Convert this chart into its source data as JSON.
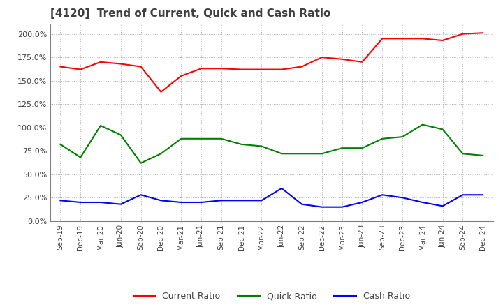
{
  "title": "[4120]  Trend of Current, Quick and Cash Ratio",
  "title_color": "#404040",
  "background_color": "#ffffff",
  "plot_background": "#ffffff",
  "grid_color": "#b0b0b0",
  "ylim": [
    0.0,
    2.1
  ],
  "yticks": [
    0.0,
    0.25,
    0.5,
    0.75,
    1.0,
    1.25,
    1.5,
    1.75,
    2.0
  ],
  "x_labels": [
    "Sep-19",
    "Dec-19",
    "Mar-20",
    "Jun-20",
    "Sep-20",
    "Dec-20",
    "Mar-21",
    "Jun-21",
    "Sep-21",
    "Dec-21",
    "Mar-22",
    "Jun-22",
    "Sep-22",
    "Dec-22",
    "Mar-23",
    "Jun-23",
    "Sep-23",
    "Dec-23",
    "Mar-24",
    "Jun-24",
    "Sep-24",
    "Dec-24"
  ],
  "current_ratio": [
    1.65,
    1.62,
    1.7,
    1.68,
    1.65,
    1.38,
    1.55,
    1.63,
    1.63,
    1.62,
    1.62,
    1.62,
    1.65,
    1.75,
    1.73,
    1.7,
    1.95,
    1.95,
    1.95,
    1.93,
    2.0,
    2.01
  ],
  "quick_ratio": [
    0.82,
    0.68,
    1.02,
    0.92,
    0.62,
    0.72,
    0.88,
    0.88,
    0.88,
    0.82,
    0.8,
    0.72,
    0.72,
    0.72,
    0.78,
    0.78,
    0.88,
    0.9,
    1.03,
    0.98,
    0.72,
    0.7
  ],
  "cash_ratio": [
    0.22,
    0.2,
    0.2,
    0.18,
    0.28,
    0.22,
    0.2,
    0.2,
    0.22,
    0.22,
    0.22,
    0.35,
    0.18,
    0.15,
    0.15,
    0.2,
    0.28,
    0.25,
    0.2,
    0.16,
    0.28,
    0.28
  ],
  "current_color": "#ff0000",
  "quick_color": "#008000",
  "cash_color": "#0000ff",
  "line_width": 1.5,
  "legend_labels": [
    "Current Ratio",
    "Quick Ratio",
    "Cash Ratio"
  ]
}
